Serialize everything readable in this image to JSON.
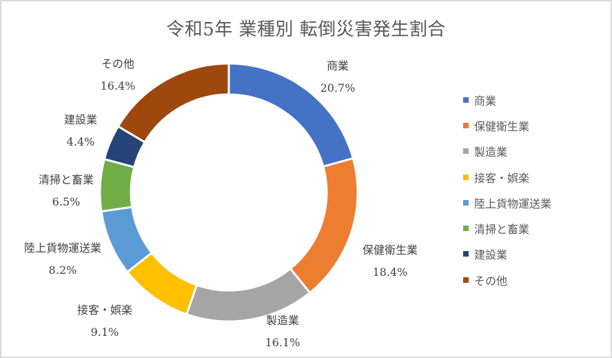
{
  "chart_data": {
    "type": "pie",
    "variant": "donut",
    "title": "令和5年 業種別 転倒災害発生割合",
    "categories": [
      "商業",
      "保健衛生業",
      "製造業",
      "接客・娯楽",
      "陸上貨物運送業",
      "清掃と畜業",
      "建設業",
      "その他"
    ],
    "values": [
      20.7,
      18.4,
      16.1,
      9.1,
      8.2,
      6.5,
      4.4,
      16.4
    ],
    "value_labels": [
      "20.7%",
      "18.4%",
      "16.1%",
      "9.1%",
      "8.2%",
      "6.5%",
      "4.4%",
      "16.4%"
    ],
    "colors": [
      "#4472c4",
      "#ed7d31",
      "#a5a5a5",
      "#ffc000",
      "#5b9bd5",
      "#70ad47",
      "#264478",
      "#9e480e"
    ],
    "unit": "%",
    "legend_position": "right",
    "start_angle_deg": 0,
    "direction": "clockwise"
  },
  "title": "令和5年 業種別 転倒災害発生割合",
  "legend": {
    "items": [
      {
        "label": "商業",
        "color": "#4472c4"
      },
      {
        "label": "保健衛生業",
        "color": "#ed7d31"
      },
      {
        "label": "製造業",
        "color": "#a5a5a5"
      },
      {
        "label": "接客・娯楽",
        "color": "#ffc000"
      },
      {
        "label": "陸上貨物運送業",
        "color": "#5b9bd5"
      },
      {
        "label": "清掃と畜業",
        "color": "#70ad47"
      },
      {
        "label": "建設業",
        "color": "#264478"
      },
      {
        "label": "その他",
        "color": "#9e480e"
      }
    ]
  },
  "labels": [
    {
      "name": "商業",
      "pct": "20.7%"
    },
    {
      "name": "保健衛生業",
      "pct": "18.4%"
    },
    {
      "name": "製造業",
      "pct": "16.1%"
    },
    {
      "name": "接客・娯楽",
      "pct": "9.1%"
    },
    {
      "name": "陸上貨物運送業",
      "pct": "8.2%"
    },
    {
      "name": "清掃と畜業",
      "pct": "6.5%"
    },
    {
      "name": "建設業",
      "pct": "4.4%"
    },
    {
      "name": "その他",
      "pct": "16.4%"
    }
  ]
}
